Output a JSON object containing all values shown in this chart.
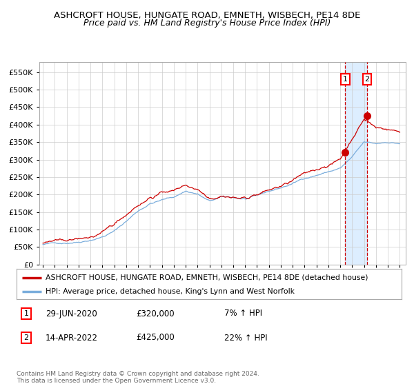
{
  "title": "ASHCROFT HOUSE, HUNGATE ROAD, EMNETH, WISBECH, PE14 8DE",
  "subtitle": "Price paid vs. HM Land Registry's House Price Index (HPI)",
  "legend_line1": "ASHCROFT HOUSE, HUNGATE ROAD, EMNETH, WISBECH, PE14 8DE (detached house)",
  "legend_line2": "HPI: Average price, detached house, King's Lynn and West Norfolk",
  "annotation1_date": "29-JUN-2020",
  "annotation1_price": "£320,000",
  "annotation1_hpi": "7% ↑ HPI",
  "annotation2_date": "14-APR-2022",
  "annotation2_price": "£425,000",
  "annotation2_hpi": "22% ↑ HPI",
  "copyright": "Contains HM Land Registry data © Crown copyright and database right 2024.\nThis data is licensed under the Open Government Licence v3.0.",
  "red_color": "#cc0000",
  "blue_color": "#7aaddc",
  "shade_color": "#ddeeff",
  "ylim": [
    0,
    580000
  ],
  "yticks": [
    0,
    50000,
    100000,
    150000,
    200000,
    250000,
    300000,
    350000,
    400000,
    450000,
    500000,
    550000
  ],
  "start_year": 1995,
  "end_year": 2025
}
